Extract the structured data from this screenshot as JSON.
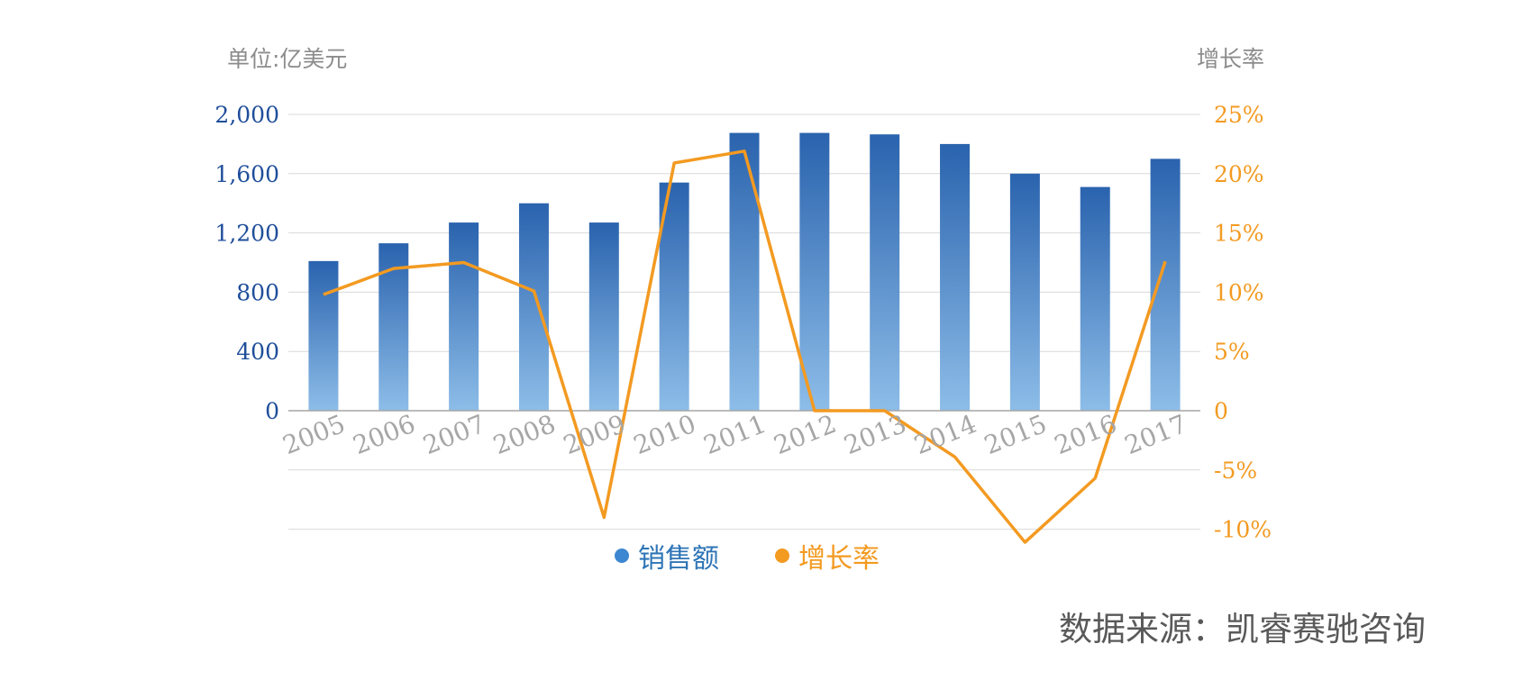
{
  "left_unit": "单位:亿美元",
  "right_unit": "增长率",
  "source": "数据来源：凯睿赛驰咨询",
  "colors": {
    "bar_top": "#2a63ae",
    "bar_bottom": "#8dbde8",
    "line": "#f39a21",
    "left_axis_text": "#1f4e9a",
    "right_axis_text": "#f39a21",
    "legend_bar_dot": "#3c87d0",
    "legend_bar_text": "#2e75b6",
    "legend_line_text": "#f39a21",
    "grid": "#d9d9d9",
    "category_text": "#a6a6a6"
  },
  "legend": [
    {
      "label": "销售额",
      "color": "#3c87d0",
      "text_color": "#2e75b6"
    },
    {
      "label": "增长率",
      "color": "#f39a21",
      "text_color": "#f39a21"
    }
  ],
  "chart_data": {
    "type": "bar",
    "categories": [
      "2005",
      "2006",
      "2007",
      "2008",
      "2009",
      "2010",
      "2011",
      "2012",
      "2013",
      "2014",
      "2015",
      "2016",
      "2017"
    ],
    "series": [
      {
        "name": "销售额",
        "type": "bar",
        "axis": "left",
        "values": [
          1010,
          1130,
          1270,
          1400,
          1270,
          1540,
          1875,
          1875,
          1865,
          1800,
          1600,
          1510,
          1700
        ]
      },
      {
        "name": "增长率",
        "type": "line",
        "axis": "right",
        "values": [
          9.8,
          12.0,
          12.5,
          10.1,
          -9.0,
          20.9,
          21.9,
          0,
          0,
          -3.9,
          -11.1,
          -5.7,
          12.6
        ]
      }
    ],
    "y_left": {
      "ticks": [
        0,
        400,
        800,
        1200,
        1600,
        2000
      ],
      "tick_labels": [
        "0",
        "400",
        "800",
        "1,200",
        "1,600",
        "2,000"
      ],
      "ylim": [
        0,
        2000
      ]
    },
    "y_right": {
      "ticks": [
        -10,
        -5,
        0,
        5,
        10,
        15,
        20,
        25
      ],
      "tick_labels": [
        "-10%",
        "-5%",
        "0",
        "5%",
        "10%",
        "15%",
        "20%",
        "25%"
      ],
      "ylim": [
        -10,
        25
      ]
    },
    "grid": true,
    "legend_position": "bottom"
  }
}
